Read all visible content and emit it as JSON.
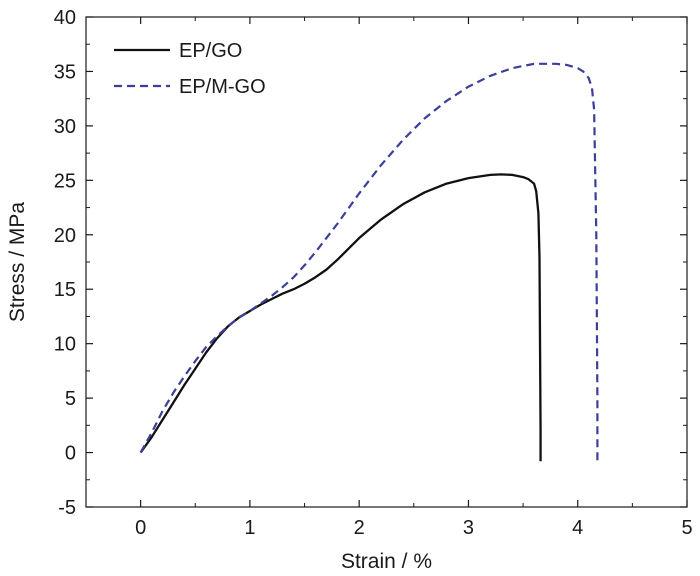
{
  "chart_data": {
    "type": "line",
    "title": "",
    "xlabel": "Strain / %",
    "ylabel": "Stress / MPa",
    "xlim": [
      -0.5,
      5
    ],
    "ylim": [
      -5,
      40
    ],
    "xticks": [
      0,
      1,
      2,
      3,
      4,
      5
    ],
    "xtick_labels": [
      "0",
      "1",
      "2",
      "3",
      "4",
      "5"
    ],
    "yticks": [
      -5,
      0,
      5,
      10,
      15,
      20,
      25,
      30,
      35,
      40
    ],
    "ytick_labels": [
      "-5",
      "0",
      "5",
      "10",
      "15",
      "20",
      "25",
      "30",
      "35",
      "40"
    ],
    "grid": false,
    "legend_position": "top-left",
    "series": [
      {
        "name": "EP/GO",
        "color": "#111111",
        "style": "solid",
        "x": [
          0,
          0.1,
          0.2,
          0.3,
          0.4,
          0.5,
          0.6,
          0.7,
          0.8,
          0.9,
          1.0,
          1.1,
          1.2,
          1.3,
          1.4,
          1.5,
          1.6,
          1.7,
          1.8,
          1.9,
          2.0,
          2.2,
          2.4,
          2.6,
          2.8,
          3.0,
          3.2,
          3.3,
          3.4,
          3.5,
          3.55,
          3.6,
          3.62,
          3.64,
          3.65,
          3.655,
          3.66,
          3.66
        ],
        "y": [
          0,
          1.4,
          3.0,
          4.6,
          6.2,
          7.7,
          9.2,
          10.5,
          11.6,
          12.4,
          13.0,
          13.6,
          14.1,
          14.6,
          15.0,
          15.5,
          16.1,
          16.8,
          17.7,
          18.7,
          19.7,
          21.4,
          22.8,
          23.9,
          24.7,
          25.2,
          25.5,
          25.55,
          25.5,
          25.3,
          25.1,
          24.7,
          24.0,
          22.0,
          18.0,
          10.0,
          2.0,
          -0.8
        ]
      },
      {
        "name": "EP/M-GO",
        "color": "#3b3f99",
        "style": "dashed",
        "x": [
          0,
          0.1,
          0.2,
          0.3,
          0.4,
          0.5,
          0.6,
          0.7,
          0.8,
          0.9,
          1.0,
          1.1,
          1.2,
          1.3,
          1.4,
          1.5,
          1.6,
          1.7,
          1.8,
          1.9,
          2.0,
          2.2,
          2.4,
          2.6,
          2.8,
          3.0,
          3.2,
          3.4,
          3.6,
          3.8,
          3.9,
          4.0,
          4.05,
          4.1,
          4.13,
          4.15,
          4.17,
          4.18,
          4.18
        ],
        "y": [
          0,
          1.8,
          3.8,
          5.5,
          7.0,
          8.4,
          9.7,
          10.7,
          11.6,
          12.4,
          13.0,
          13.7,
          14.4,
          15.2,
          16.1,
          17.2,
          18.4,
          19.7,
          21.0,
          22.4,
          23.8,
          26.4,
          28.7,
          30.7,
          32.3,
          33.6,
          34.6,
          35.3,
          35.7,
          35.7,
          35.6,
          35.3,
          35.0,
          34.4,
          33.5,
          31.5,
          20.0,
          5.0,
          -1.0
        ]
      }
    ]
  }
}
